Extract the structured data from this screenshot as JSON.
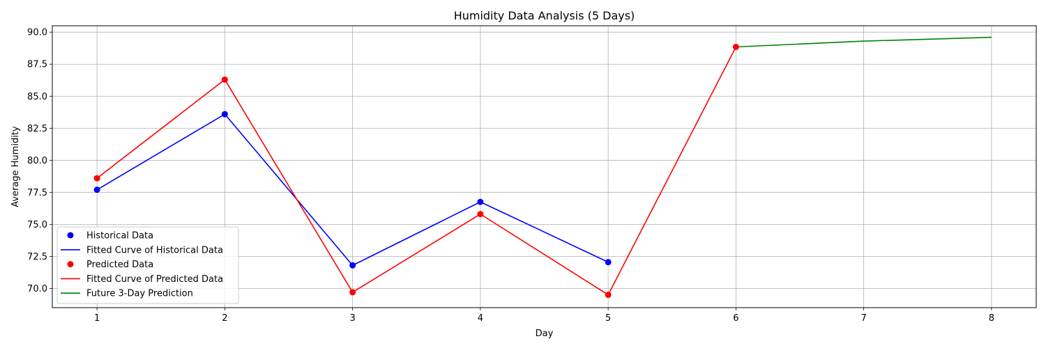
{
  "chart_data": {
    "type": "line",
    "title": "Humidity Data Analysis (5 Days)",
    "xlabel": "Day",
    "ylabel": "Average Humidity",
    "xlim": [
      0.65,
      8.35
    ],
    "ylim": [
      68.5,
      90.5
    ],
    "xticks": [
      1,
      2,
      3,
      4,
      5,
      6,
      7,
      8
    ],
    "yticks": [
      70.0,
      72.5,
      75.0,
      77.5,
      80.0,
      82.5,
      85.0,
      87.5,
      90.0
    ],
    "ytick_labels": [
      "70.0",
      "72.5",
      "75.0",
      "77.5",
      "80.0",
      "82.5",
      "85.0",
      "87.5",
      "90.0"
    ],
    "grid": true,
    "legend_position": "lower-left",
    "series": [
      {
        "name": "Historical Data",
        "kind": "scatter",
        "color": "#0000ff",
        "x": [
          1,
          2,
          3,
          4,
          5
        ],
        "y": [
          77.7,
          83.6,
          71.8,
          76.75,
          72.05
        ]
      },
      {
        "name": "Fitted Curve of Historical Data",
        "kind": "line",
        "color": "#0000ff",
        "x": [
          1,
          2,
          3,
          4,
          5
        ],
        "y": [
          77.7,
          83.6,
          71.8,
          76.75,
          72.05
        ]
      },
      {
        "name": "Predicted Data",
        "kind": "scatter",
        "color": "#ff0000",
        "x": [
          1,
          2,
          3,
          4,
          5,
          6
        ],
        "y": [
          78.6,
          86.3,
          69.7,
          75.8,
          69.5,
          88.85
        ]
      },
      {
        "name": "Fitted Curve of Predicted Data",
        "kind": "line",
        "color": "#ff0000",
        "x": [
          1,
          2,
          3,
          4,
          5,
          6
        ],
        "y": [
          78.6,
          86.3,
          69.7,
          75.8,
          69.5,
          88.85
        ]
      },
      {
        "name": "Future 3-Day Prediction",
        "kind": "line",
        "color": "#008000",
        "x": [
          6,
          7,
          8
        ],
        "y": [
          88.85,
          89.3,
          89.6
        ]
      }
    ]
  }
}
